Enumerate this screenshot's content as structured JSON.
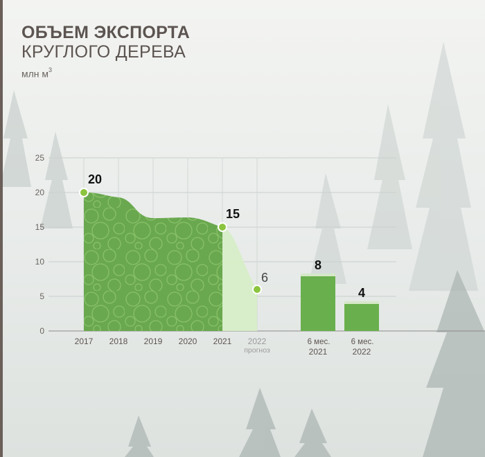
{
  "header": {
    "title_line1": "ОБЪЕМ ЭКСПОРТА",
    "title_line2": "КРУГЛОГО ДЕРЕВА",
    "unit": "млн м",
    "unit_sup": "3"
  },
  "colors": {
    "area_dark": "#6aa84f",
    "area_light": "#d6eec6",
    "bar": "#6aaf4e",
    "marker": "#8cc43f",
    "text_dark": "#5c5450",
    "forecast_text": "#9a9a9a"
  },
  "chart_data": {
    "type": "area",
    "y_ticks": [
      "25",
      "20",
      "15",
      "10",
      "5",
      "0"
    ],
    "ylim": [
      0,
      25
    ],
    "grid": true,
    "area": {
      "x": [
        "2017",
        "2018",
        "2019",
        "2020",
        "2021",
        "2022"
      ],
      "values": [
        20,
        19.3,
        16.3,
        16.4,
        15,
        6
      ],
      "forecast_category": "2022",
      "forecast_sublabel": "прогноз"
    },
    "point_labels": [
      {
        "x": "2017",
        "value": 20,
        "text": "20",
        "bold": true
      },
      {
        "x": "2021",
        "value": 15,
        "text": "15",
        "bold": true
      },
      {
        "x": "2022",
        "value": 6,
        "text": "6",
        "bold": false
      }
    ],
    "bars": [
      {
        "label_top": "6 мес.",
        "label_bottom": "2021",
        "value": 8,
        "value_label": "8"
      },
      {
        "label_top": "6 мес.",
        "label_bottom": "2022",
        "value": 4,
        "value_label": "4"
      }
    ]
  }
}
